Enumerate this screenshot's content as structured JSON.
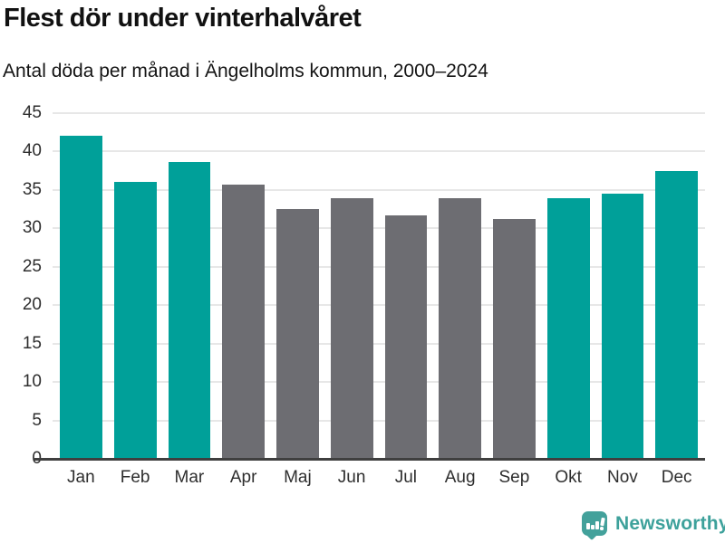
{
  "header": {
    "title": "Flest dör under vinterhalvåret",
    "subtitle": "Antal döda per månad i Ängelholms kommun, 2000–2024"
  },
  "chart_data": {
    "type": "bar",
    "title": "Flest dör under vinterhalvåret",
    "subtitle": "Antal döda per månad i Ängelholms kommun, 2000–2024",
    "categories": [
      "Jan",
      "Feb",
      "Mar",
      "Apr",
      "Maj",
      "Jun",
      "Jul",
      "Aug",
      "Sep",
      "Okt",
      "Nov",
      "Dec"
    ],
    "values": [
      42.1,
      36.1,
      38.6,
      35.7,
      32.5,
      33.9,
      31.7,
      33.9,
      31.2,
      33.9,
      34.5,
      37.5
    ],
    "bar_colors": [
      "#00a099",
      "#00a099",
      "#00a099",
      "#6d6d72",
      "#6d6d72",
      "#6d6d72",
      "#6d6d72",
      "#6d6d72",
      "#6d6d72",
      "#00a099",
      "#00a099",
      "#00a099"
    ],
    "xlabel": "",
    "ylabel": "",
    "ylim": [
      0,
      45
    ],
    "yticks": [
      0,
      5,
      10,
      15,
      20,
      25,
      30,
      35,
      40,
      45
    ],
    "grid": true,
    "legend_position": "none"
  },
  "footer": {
    "brand_label": "Newsworthy",
    "logo_icon": "newsworthy-bar-chart-bubble-icon"
  },
  "colors": {
    "highlight_teal": "#00a099",
    "neutral_gray": "#6d6d72",
    "gridline": "#e7e7e7",
    "axis": "#3f3f3f",
    "text": "#111111",
    "brand_teal": "#3da19b"
  }
}
